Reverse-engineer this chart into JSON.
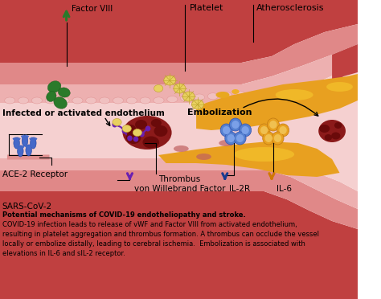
{
  "bg_color": "#ffffff",
  "title_line1": "Potential mechanisms of COVID-19 endotheliopathy and stroke.",
  "title_line2": "COVID-19 infection leads to release of vWF and Factor VIII from activated endothelium,",
  "title_line3": "resulting in platelet aggregation and thrombus formation. A thrombus can occlude the vessel",
  "title_line4": "locally or embolize distally, leading to cerebral ischemia.  Embolization is associated with",
  "title_line5": "elevations in IL-6 and sIL-2 receptor.",
  "label_factor8": "Factor VIII",
  "label_platelet": "Platelet",
  "label_athero": "Atherosclerosis",
  "label_infected": "Infected or activated endothelium",
  "label_embolization": "Embolization",
  "label_ace2": "ACE-2 Receptor",
  "label_thrombus": "Thrombus",
  "label_vwf": "von Willebrand Factor",
  "label_sars": "SARS-CoV-2",
  "label_il2r": "IL-2R",
  "label_il6": "IL-6",
  "arrow_green": "#2a7a2a",
  "arrow_purple": "#6a1fb1",
  "arrow_blue": "#1a3a8f",
  "arrow_orange": "#d07800",
  "vessel_dark": "#c04040",
  "vessel_mid": "#e08888",
  "vessel_light": "#edb0b0",
  "lumen_color": "#f5d0d0",
  "plaque_color": "#e8a020",
  "thrombus_color": "#8b1a1a"
}
